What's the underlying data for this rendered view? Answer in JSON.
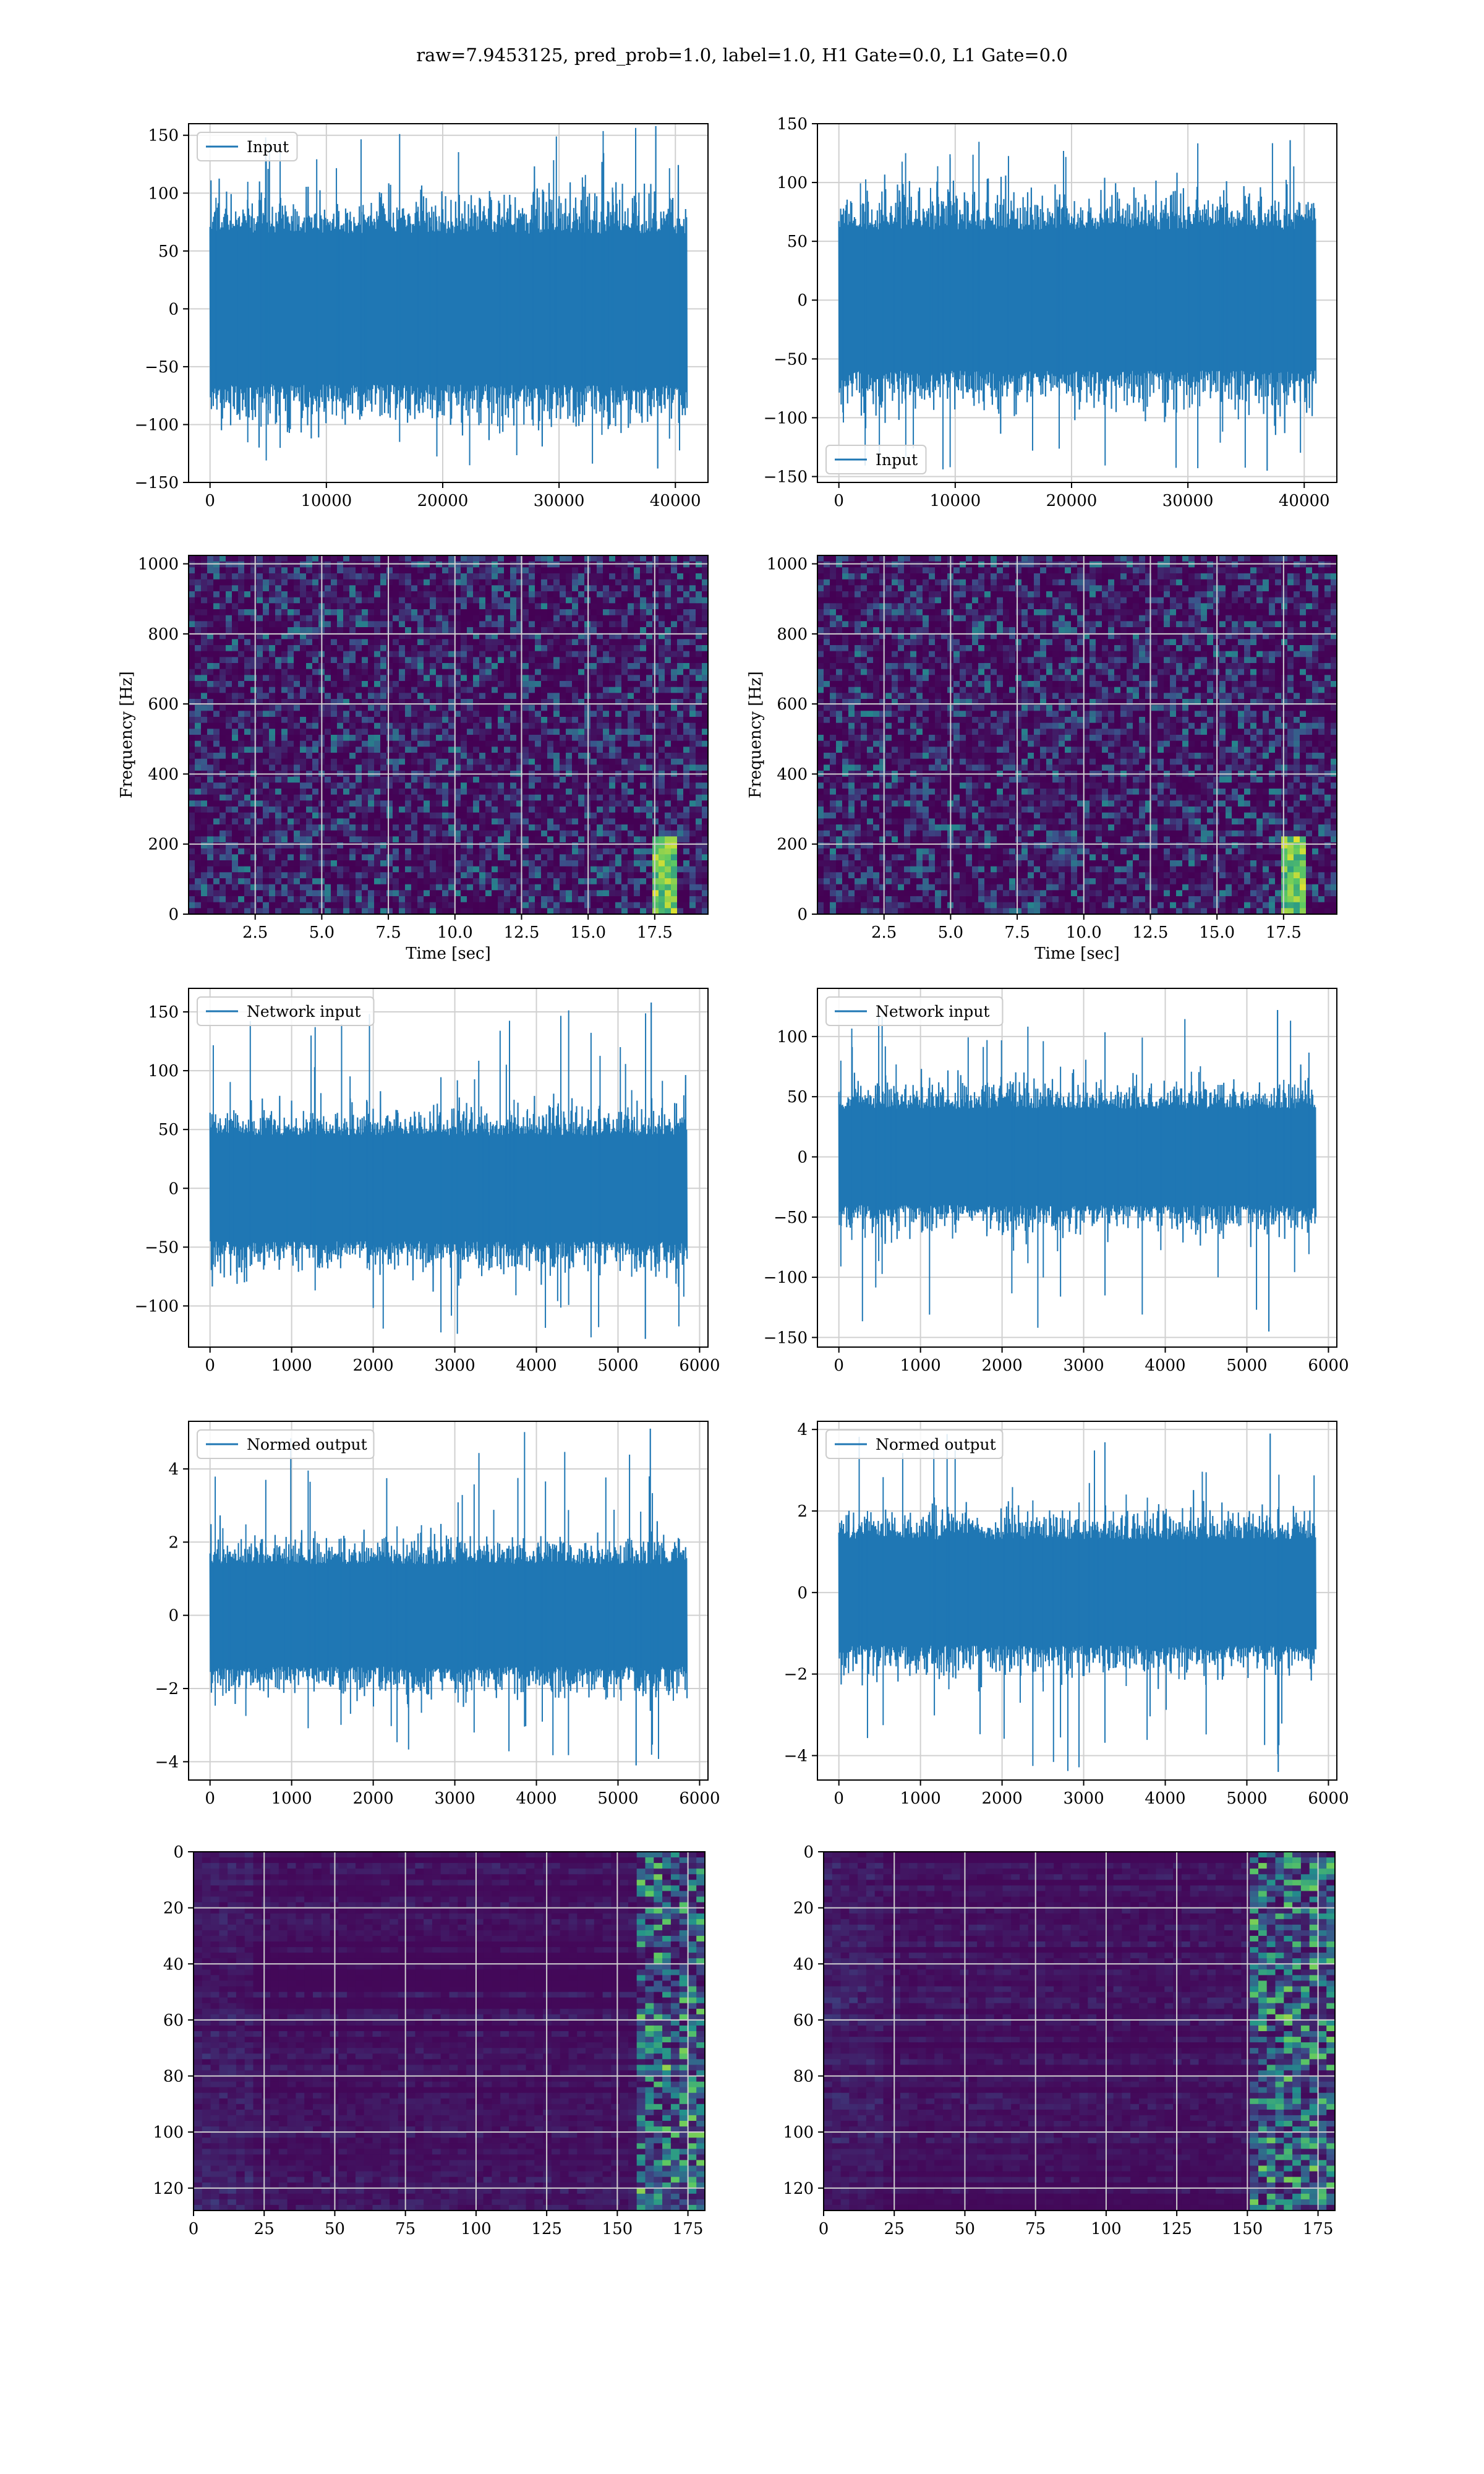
{
  "figure": {
    "title": "raw=7.9453125, pred_prob=1.0, label=1.0, H1 Gate=0.0, L1 Gate=0.0"
  },
  "colors": {
    "line": "#1f77b4",
    "grid": "#d0d0d0",
    "viridis_low": "#440154",
    "viridis_mid": "#21918c",
    "viridis_high": "#fde725"
  },
  "chart_data": [
    {
      "id": "h1-input",
      "type": "line",
      "style": "noise",
      "x_range": [
        0,
        40960
      ],
      "ylim": [
        -150,
        160
      ],
      "xticks": [
        0,
        10000,
        20000,
        30000,
        40000
      ],
      "yticks": [
        -150,
        -100,
        -50,
        0,
        50,
        100,
        150
      ],
      "series": [
        {
          "name": "Input",
          "band": [
            -65,
            65
          ],
          "peak_max": 158,
          "peak_min": -138
        }
      ],
      "legend": "top-left",
      "grid": true,
      "xlabel": "",
      "ylabel": ""
    },
    {
      "id": "l1-input",
      "type": "line",
      "style": "noise",
      "x_range": [
        0,
        40960
      ],
      "ylim": [
        -155,
        150
      ],
      "xticks": [
        0,
        10000,
        20000,
        30000,
        40000
      ],
      "yticks": [
        -150,
        -100,
        -50,
        0,
        50,
        100,
        150
      ],
      "series": [
        {
          "name": "Input",
          "band": [
            -60,
            60
          ],
          "peak_max": 136,
          "peak_min": -145
        }
      ],
      "legend": "bottom-left",
      "grid": true,
      "xlabel": "",
      "ylabel": ""
    },
    {
      "id": "h1-spectrogram",
      "type": "heatmap",
      "style": "spectrogram",
      "xlim": [
        0,
        19.5
      ],
      "ylim": [
        0,
        1024
      ],
      "xticks": [
        2.5,
        5.0,
        7.5,
        10.0,
        12.5,
        15.0,
        17.5
      ],
      "yticks": [
        0,
        200,
        400,
        600,
        800,
        1000
      ],
      "xlabel": "Time [sec]",
      "ylabel": "Frequency [Hz]",
      "chirp_time": 17.8,
      "grid": true
    },
    {
      "id": "l1-spectrogram",
      "type": "heatmap",
      "style": "spectrogram",
      "xlim": [
        0,
        19.5
      ],
      "ylim": [
        0,
        1024
      ],
      "xticks": [
        2.5,
        5.0,
        7.5,
        10.0,
        12.5,
        15.0,
        17.5
      ],
      "yticks": [
        0,
        200,
        400,
        600,
        800,
        1000
      ],
      "xlabel": "Time [sec]",
      "ylabel": "Frequency [Hz]",
      "chirp_time": 17.9,
      "grid": true
    },
    {
      "id": "h1-network-input",
      "type": "line",
      "style": "noise",
      "x_range": [
        0,
        5840
      ],
      "ylim": [
        -135,
        170
      ],
      "xticks": [
        0,
        1000,
        2000,
        3000,
        4000,
        5000,
        6000
      ],
      "yticks": [
        -100,
        -50,
        0,
        50,
        100,
        150
      ],
      "series": [
        {
          "name": "Network input",
          "band": [
            -45,
            45
          ],
          "peak_max": 158,
          "peak_min": -128
        }
      ],
      "legend": "top-left",
      "grid": true,
      "xlabel": "",
      "ylabel": ""
    },
    {
      "id": "l1-network-input",
      "type": "line",
      "style": "noise",
      "x_range": [
        0,
        5840
      ],
      "ylim": [
        -158,
        140
      ],
      "xticks": [
        0,
        1000,
        2000,
        3000,
        4000,
        5000,
        6000
      ],
      "yticks": [
        -150,
        -100,
        -50,
        0,
        50,
        100
      ],
      "series": [
        {
          "name": "Network input",
          "band": [
            -40,
            40
          ],
          "peak_max": 122,
          "peak_min": -145
        }
      ],
      "legend": "top-left",
      "grid": true,
      "xlabel": "",
      "ylabel": ""
    },
    {
      "id": "h1-normed-output",
      "type": "line",
      "style": "noise",
      "x_range": [
        0,
        5840
      ],
      "ylim": [
        -4.5,
        5.3
      ],
      "xticks": [
        0,
        1000,
        2000,
        3000,
        4000,
        5000,
        6000
      ],
      "yticks": [
        -4,
        -2,
        0,
        2,
        4
      ],
      "series": [
        {
          "name": "Normed output",
          "band": [
            -1.4,
            1.4
          ],
          "peak_max": 5.1,
          "peak_min": -4.1
        }
      ],
      "legend": "top-left",
      "grid": true,
      "xlabel": "",
      "ylabel": ""
    },
    {
      "id": "l1-normed-output",
      "type": "line",
      "style": "noise",
      "x_range": [
        0,
        5840
      ],
      "ylim": [
        -4.6,
        4.2
      ],
      "xticks": [
        0,
        1000,
        2000,
        3000,
        4000,
        5000,
        6000
      ],
      "yticks": [
        -4,
        -2,
        0,
        2,
        4
      ],
      "series": [
        {
          "name": "Normed output",
          "band": [
            -1.3,
            1.3
          ],
          "peak_max": 3.9,
          "peak_min": -4.4
        }
      ],
      "legend": "top-left",
      "grid": true,
      "xlabel": "",
      "ylabel": ""
    },
    {
      "id": "h1-feature-map",
      "type": "heatmap",
      "style": "featuremap",
      "xlim": [
        0,
        181
      ],
      "ylim": [
        128,
        0
      ],
      "xticks": [
        0,
        25,
        50,
        75,
        100,
        125,
        150,
        175
      ],
      "yticks": [
        0,
        20,
        40,
        60,
        80,
        100,
        120
      ],
      "hot_columns": [
        158,
        180
      ],
      "grid": true,
      "xlabel": "",
      "ylabel": ""
    },
    {
      "id": "l1-feature-map",
      "type": "heatmap",
      "style": "featuremap",
      "xlim": [
        0,
        181
      ],
      "ylim": [
        128,
        0
      ],
      "xticks": [
        0,
        25,
        50,
        75,
        100,
        125,
        150,
        175
      ],
      "yticks": [
        0,
        20,
        40,
        60,
        80,
        100,
        120
      ],
      "hot_columns": [
        150,
        180
      ],
      "grid": true,
      "xlabel": "",
      "ylabel": ""
    }
  ]
}
